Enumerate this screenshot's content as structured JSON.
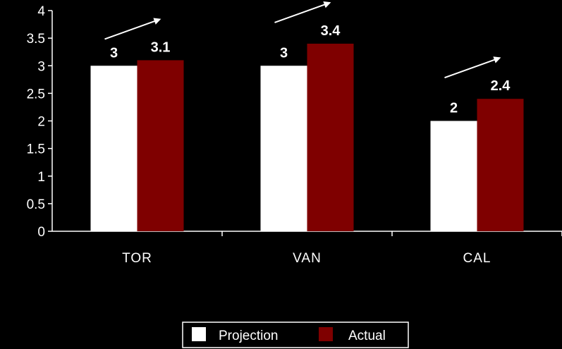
{
  "chart_data": {
    "type": "bar",
    "categories": [
      "TOR",
      "VAN",
      "CAL"
    ],
    "series": [
      {
        "name": "Projection",
        "values": [
          3,
          3,
          2
        ],
        "color": "#ffffff"
      },
      {
        "name": "Actual",
        "values": [
          3.1,
          3.4,
          2.4
        ],
        "color": "#7f0000"
      }
    ],
    "data_labels": [
      [
        "3",
        "3",
        "2"
      ],
      [
        "3.1",
        "3.4",
        "2.4"
      ]
    ],
    "y_ticks": [
      "0",
      "0.5",
      "1",
      "1.5",
      "2",
      "2.5",
      "3",
      "3.5",
      "4"
    ],
    "ylim": [
      0,
      4
    ],
    "grid": false,
    "legend_position": "bottom",
    "annotations": "upward arrow above each category",
    "background": "#000000",
    "axis_color": "#ffffff"
  }
}
